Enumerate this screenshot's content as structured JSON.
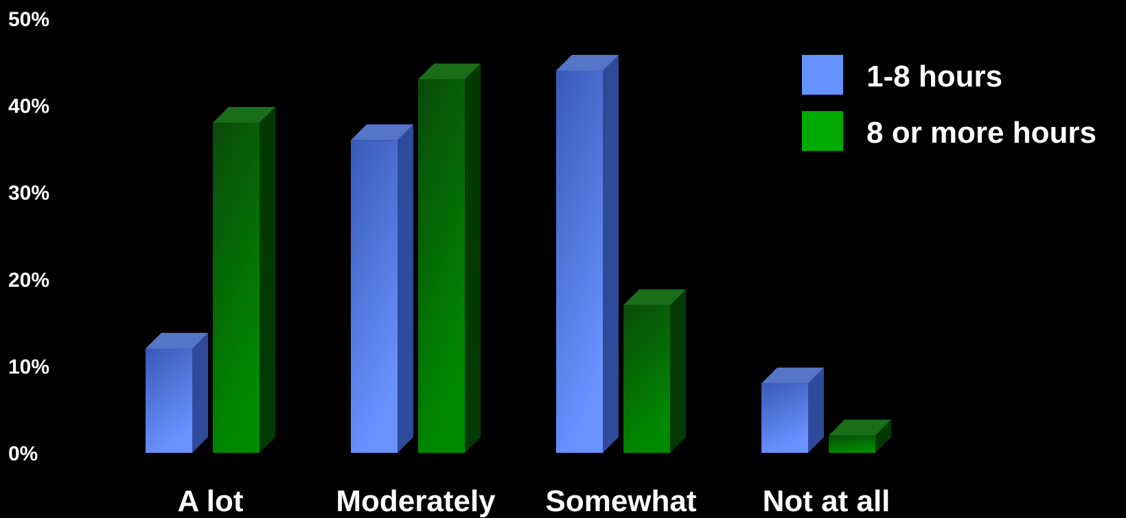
{
  "chart_data": {
    "type": "bar",
    "title": "",
    "xlabel": "",
    "ylabel": "",
    "ylim": [
      0,
      50
    ],
    "yticks": [
      "0%",
      "10%",
      "20%",
      "30%",
      "40%",
      "50%"
    ],
    "categories": [
      "A lot",
      "Moderately",
      "Somewhat",
      "Not at all"
    ],
    "series": [
      {
        "name": "1-8 hours",
        "values": [
          12,
          36,
          44,
          8
        ]
      },
      {
        "name": "8 or more hours",
        "values": [
          38,
          43,
          17,
          2
        ]
      }
    ],
    "grid": false,
    "legend_position": "top-right",
    "style": "3d-column"
  },
  "colors": {
    "background": "#000000",
    "series": [
      {
        "face_top": "#3a5ab8",
        "face_bottom": "#6a92ff",
        "side": "#2e4a9a",
        "cap": "#5575c8",
        "swatch": "#6492ff"
      },
      {
        "face_top": "#0a4a0a",
        "face_bottom": "#008a00",
        "side": "#003a00",
        "cap": "#1a6e1a",
        "swatch": "#00aa00"
      }
    ]
  }
}
